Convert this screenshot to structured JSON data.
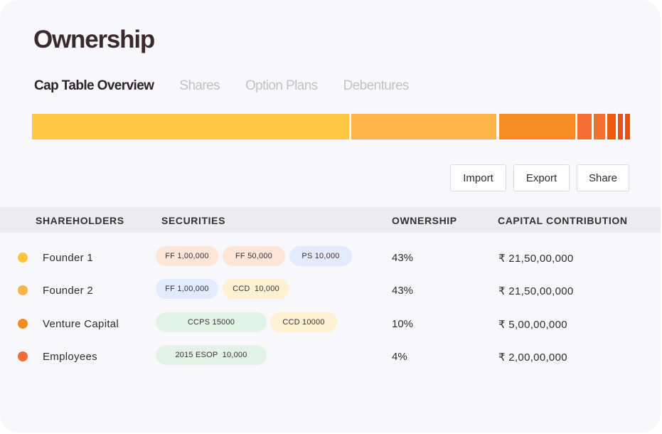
{
  "title": "Ownership",
  "tabs": [
    {
      "label": "Cap Table Overview",
      "active": true
    },
    {
      "label": "Shares",
      "active": false
    },
    {
      "label": "Option Plans",
      "active": false
    },
    {
      "label": "Debentures",
      "active": false
    }
  ],
  "ownership_bar_colors": [
    "#fec842",
    "#fdb54a",
    "#f58b25",
    "#f46e37",
    "#f36f32",
    "#ef5a12",
    "#e84f10",
    "#e6500f"
  ],
  "actions": {
    "import": "Import",
    "export": "Export",
    "share": "Share"
  },
  "table": {
    "headers": {
      "shareholders": "SHAREHOLDERS",
      "securities": "SECURITIES",
      "ownership": "OWNERSHIP",
      "capital": "CAPITAL CONTRIBUTION"
    },
    "rows": [
      {
        "name": "Founder 1",
        "dot_color": "#fec43e",
        "securities": [
          {
            "label": "FF 1,00,000",
            "color": "#fde6d7"
          },
          {
            "label": "FF 50,000",
            "color": "#fde6d7"
          },
          {
            "label": "PS 10,000",
            "color": "#e2ebfb"
          }
        ],
        "ownership": "43%",
        "capital": "₹ 21,50,00,000"
      },
      {
        "name": "Founder 2",
        "dot_color": "#fdb548",
        "securities": [
          {
            "label": "FF 1,00,000",
            "color": "#e2ebfb"
          },
          {
            "label": "CCD  10,000",
            "color": "#fdf1d4"
          }
        ],
        "ownership": "43%",
        "capital": "₹ 21,50,00,000"
      },
      {
        "name": "Venture Capital",
        "dot_color": "#f68b24",
        "securities": [
          {
            "label": "CCPS 15000",
            "color": "#e3f2e7"
          },
          {
            "label": "CCD 10000",
            "color": "#fdf1d4"
          }
        ],
        "ownership": "10%",
        "capital": "₹ 5,00,00,000"
      },
      {
        "name": "Employees",
        "dot_color": "#f46d39",
        "securities": [
          {
            "label": "2015 ESOP  10,000",
            "color": "#e3f2e7"
          }
        ],
        "ownership": "4%",
        "capital": "₹ 2,00,00,000"
      }
    ]
  }
}
